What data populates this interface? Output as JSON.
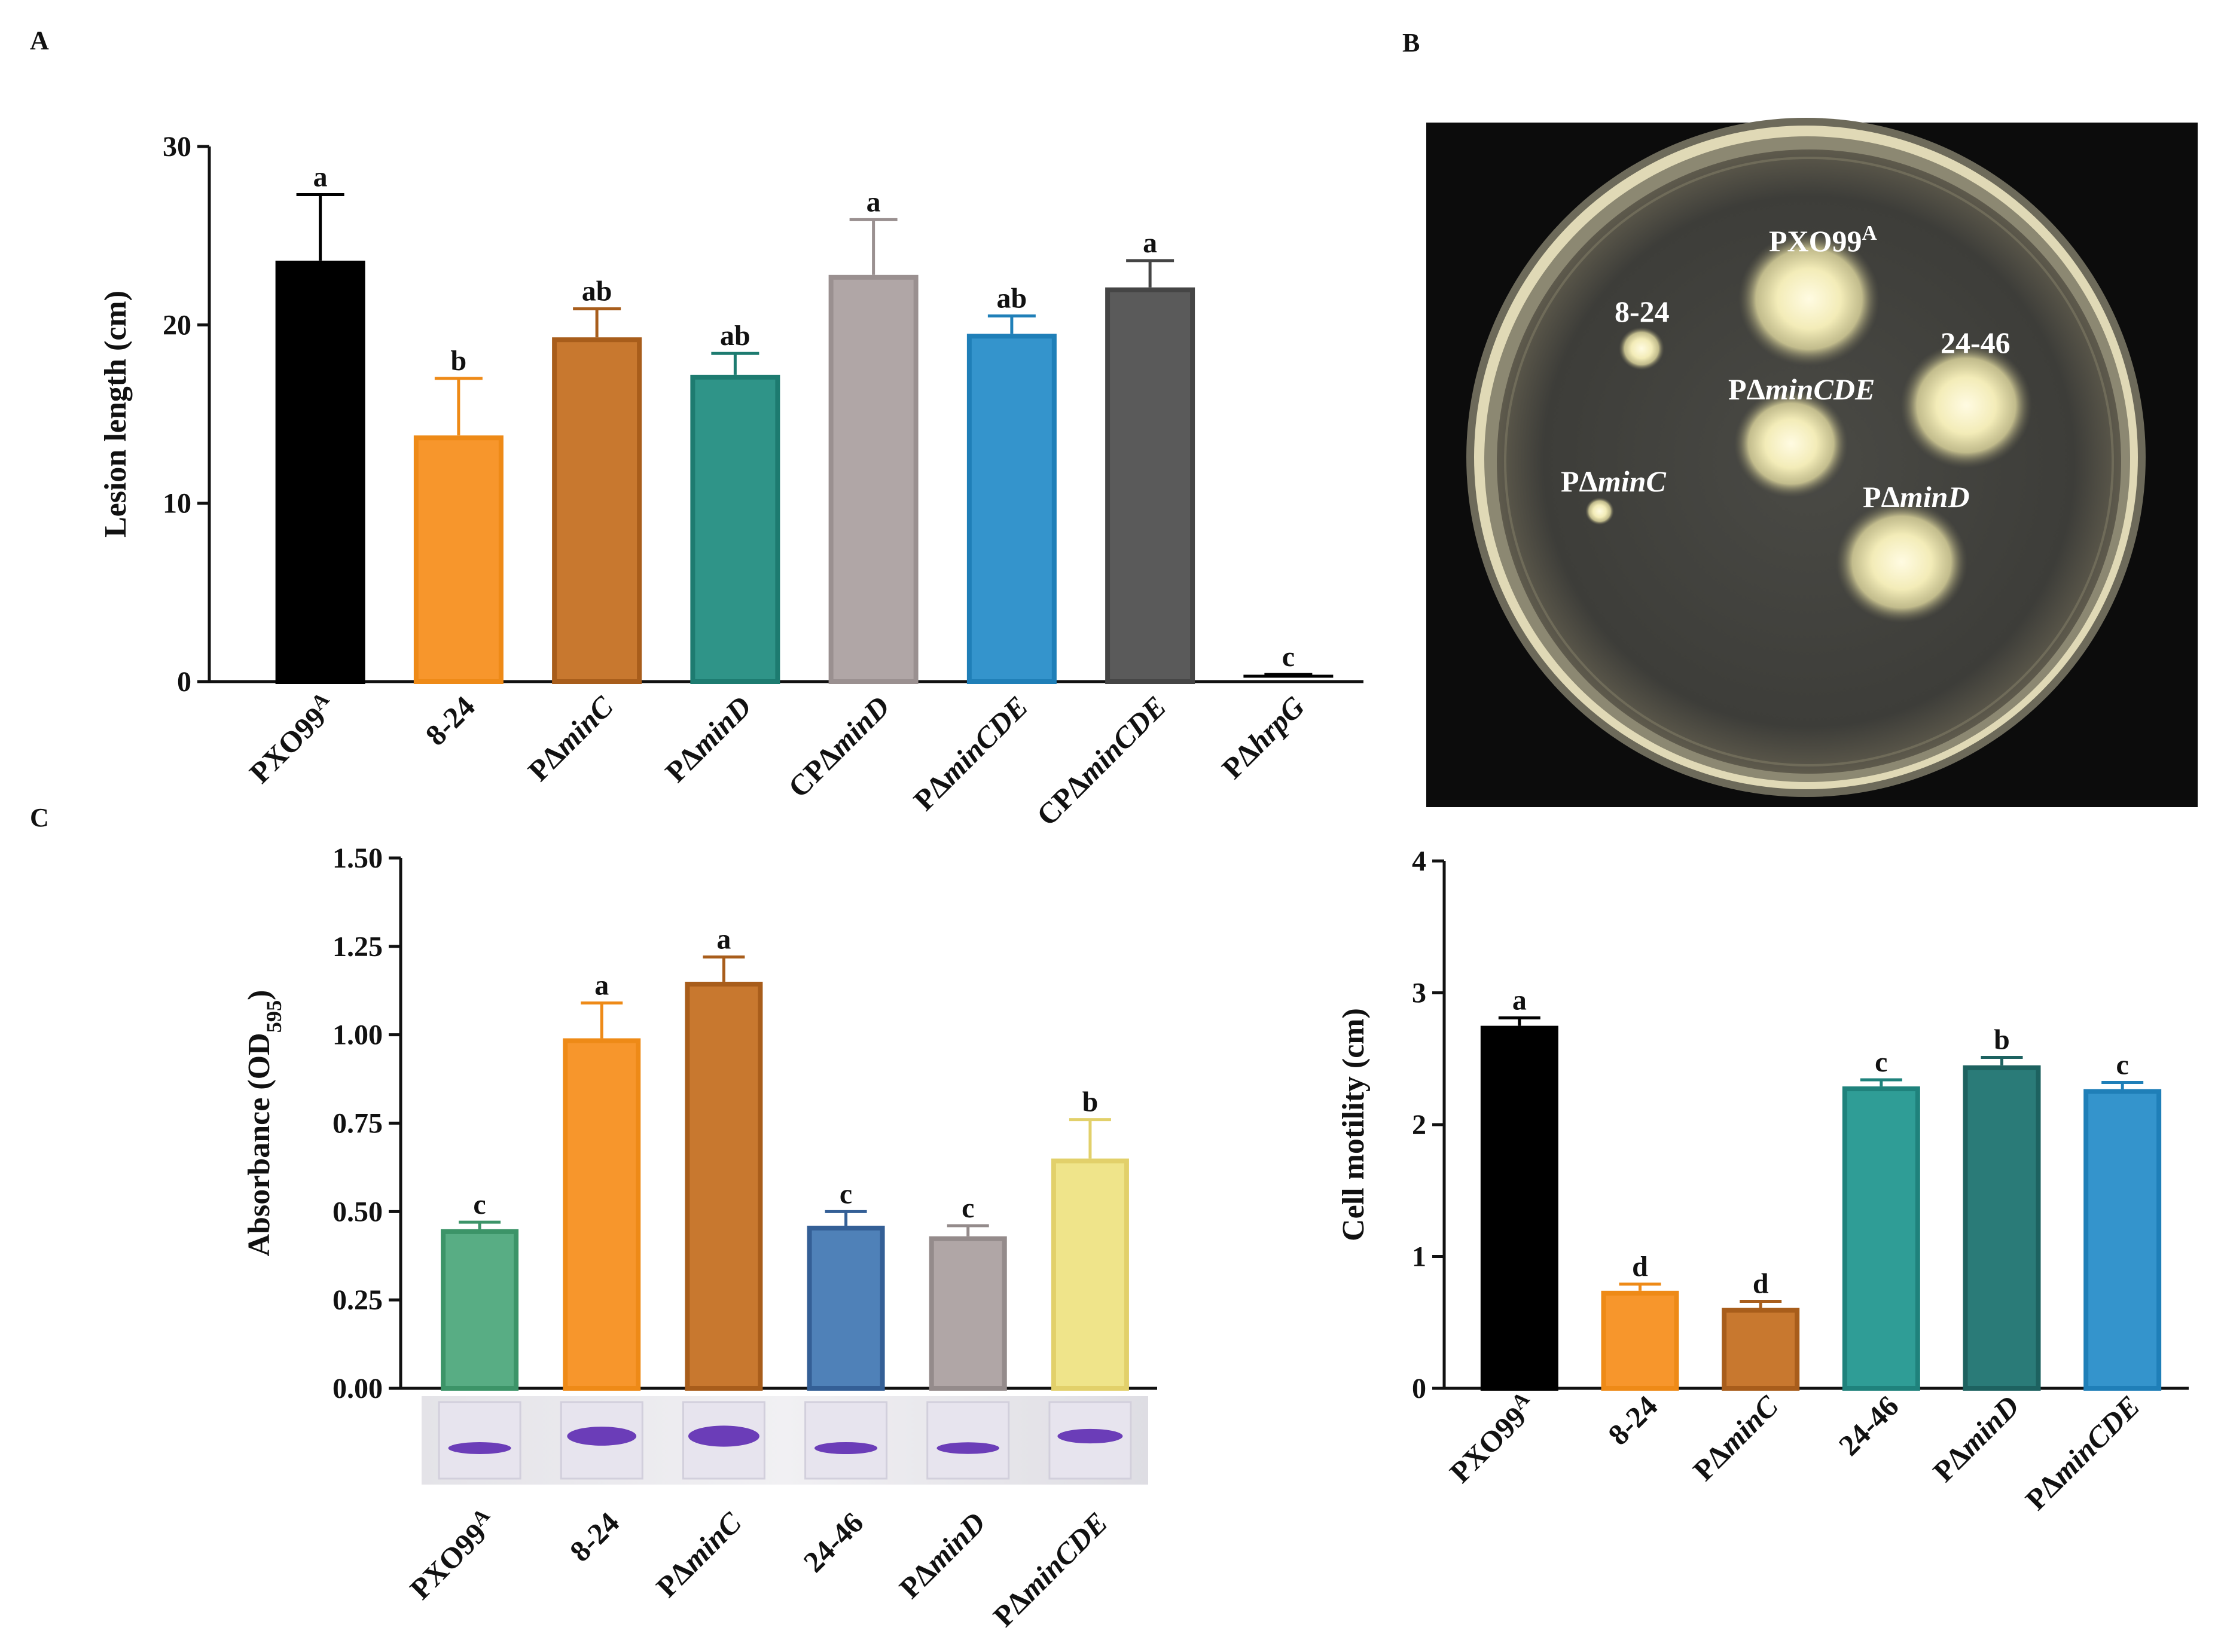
{
  "panel_labels": {
    "a": "A",
    "b": "B",
    "c": "C"
  },
  "chart_data": [
    {
      "id": "lesion",
      "type": "bar",
      "title": "",
      "ylabel": "Lesion length (cm)",
      "ylim": [
        0,
        30
      ],
      "yticks": [
        "0",
        "10",
        "20",
        "30"
      ],
      "categories": [
        "PXO99A",
        "8-24",
        "PΔminC",
        "PΔminD",
        "CPΔminD",
        "PΔminCDE",
        "CPΔminCDE",
        "PΔhrpG"
      ],
      "values": [
        23.6,
        13.8,
        19.3,
        17.2,
        22.8,
        19.5,
        22.1,
        0.3
      ],
      "errors": [
        3.7,
        3.2,
        1.6,
        1.2,
        3.1,
        1.0,
        1.5,
        0.1
      ],
      "letters": [
        "a",
        "b",
        "ab",
        "ab",
        "a",
        "ab",
        "a",
        "c"
      ],
      "colors": [
        "#000000",
        "#f7962c",
        "#c8782f",
        "#2f9488",
        "#b0a6a6",
        "#3494cc",
        "#5a5a5a",
        "#000000"
      ],
      "edge_colors": [
        "#000000",
        "#ee8a17",
        "#a85d1b",
        "#1d7b70",
        "#9a9090",
        "#1f7fb8",
        "#454545",
        "#000000"
      ],
      "legend": "none"
    },
    {
      "id": "biofilm",
      "type": "bar",
      "title": "",
      "ylabel": "Absorbance (OD595)",
      "ylim": [
        0,
        1.5
      ],
      "yticks": [
        "0.00",
        "0.25",
        "0.50",
        "0.75",
        "1.00",
        "1.25",
        "1.50"
      ],
      "categories": [
        "PXO99A",
        "8-24",
        "PΔminC",
        "24-46",
        "PΔminD",
        "PΔminCDE"
      ],
      "values": [
        0.45,
        0.99,
        1.15,
        0.46,
        0.43,
        0.65
      ],
      "errors": [
        0.02,
        0.1,
        0.07,
        0.04,
        0.03,
        0.11
      ],
      "letters": [
        "c",
        "a",
        "a",
        "c",
        "c",
        "b"
      ],
      "colors": [
        "#58ad84",
        "#f7962c",
        "#c8782f",
        "#4f81b8",
        "#b0a6a6",
        "#efe48a"
      ],
      "edge_colors": [
        "#3c9468",
        "#ee8a17",
        "#a85d1b",
        "#345f96",
        "#948b8b",
        "#e2d06a"
      ],
      "legend": "none"
    },
    {
      "id": "motility",
      "type": "bar",
      "title": "",
      "ylabel": "Cell motility (cm)",
      "ylim": [
        0,
        4
      ],
      "yticks": [
        "0",
        "1",
        "2",
        "3",
        "4"
      ],
      "categories": [
        "PXO99A",
        "8-24",
        "PΔminC",
        "24-46",
        "PΔminD",
        "PΔminCDE"
      ],
      "values": [
        2.75,
        0.74,
        0.61,
        2.29,
        2.45,
        2.27
      ],
      "errors": [
        0.06,
        0.05,
        0.05,
        0.05,
        0.06,
        0.05
      ],
      "letters": [
        "a",
        "d",
        "d",
        "c",
        "b",
        "c"
      ],
      "colors": [
        "#000000",
        "#f7962c",
        "#c8782f",
        "#2f9d96",
        "#2a7b78",
        "#3494cc"
      ],
      "edge_colors": [
        "#000000",
        "#ee8a17",
        "#a85d1b",
        "#1f827c",
        "#1d6260",
        "#1f7fb8"
      ],
      "legend": "none"
    }
  ],
  "plate": {
    "colonies": [
      "PXO99A",
      "8-24",
      "24-46",
      "PΔminCDE",
      "PΔminC",
      "PΔminD"
    ]
  }
}
